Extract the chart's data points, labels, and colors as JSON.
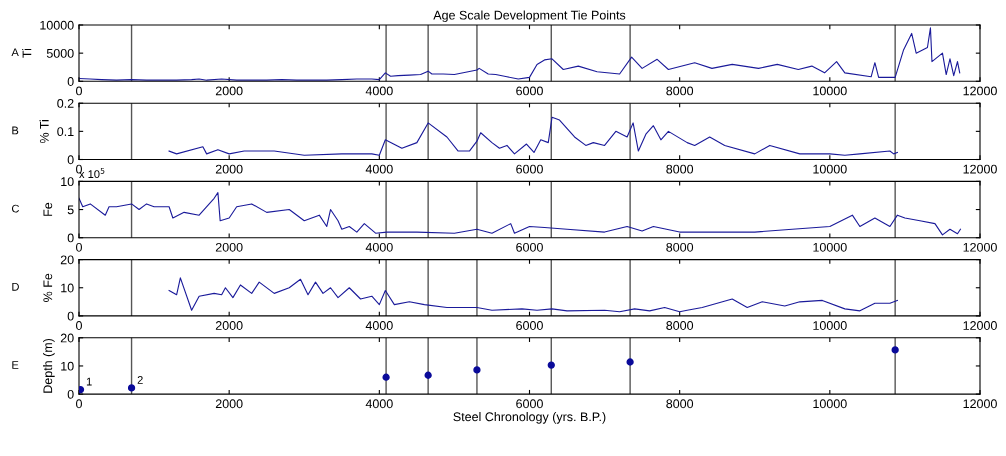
{
  "chart_data": [
    {
      "type": "line",
      "title": "Age Scale Development Tie Points",
      "ylabel": "Ti",
      "annotations": [
        "A"
      ],
      "ref_lines": [
        {
          "axis": "x",
          "value": 700
        },
        {
          "axis": "x",
          "value": 4090
        },
        {
          "axis": "x",
          "value": 4650
        },
        {
          "axis": "x",
          "value": 5300
        },
        {
          "axis": "x",
          "value": 6290
        },
        {
          "axis": "x",
          "value": 7340
        },
        {
          "axis": "x",
          "value": 10870
        }
      ],
      "grid": false,
      "xlim": [
        0,
        12000
      ],
      "xticks": [
        0,
        2000,
        4000,
        6000,
        8000,
        10000,
        12000
      ],
      "ylim": [
        0,
        10000
      ],
      "yticks": [
        0,
        5000,
        10000
      ],
      "series": [
        {
          "color": "#1a1a9a",
          "x": [
            0,
            150,
            300,
            500,
            700,
            900,
            1100,
            1300,
            1500,
            1600,
            1700,
            1900,
            2100,
            2300,
            2500,
            2700,
            2900,
            3100,
            3300,
            3500,
            3700,
            3900,
            4000,
            4080,
            4150,
            4250,
            4400,
            4550,
            4650,
            4700,
            4850,
            5000,
            5150,
            5300,
            5330,
            5450,
            5550,
            5700,
            5850,
            6000,
            6100,
            6200,
            6300,
            6450,
            6650,
            6900,
            7200,
            7360,
            7500,
            7700,
            7850,
            8200,
            8430,
            8700,
            9050,
            9300,
            9580,
            9760,
            9930,
            10090,
            10200,
            10550,
            10600,
            10650,
            10870,
            10980,
            11090,
            11150,
            11300,
            11340,
            11360,
            11500,
            11550,
            11600,
            11650,
            11700,
            11730
          ],
          "values": [
            500,
            400,
            300,
            200,
            300,
            200,
            200,
            200,
            300,
            400,
            200,
            400,
            200,
            200,
            200,
            300,
            200,
            200,
            200,
            300,
            400,
            400,
            300,
            1500,
            900,
            1000,
            1100,
            1200,
            1800,
            1300,
            1300,
            1200,
            1600,
            2000,
            2300,
            1300,
            1200,
            800,
            400,
            700,
            3000,
            3800,
            4000,
            2100,
            2700,
            1700,
            1300,
            4300,
            2300,
            3900,
            2100,
            3300,
            2300,
            3000,
            2300,
            3000,
            2100,
            2700,
            1500,
            3500,
            1500,
            800,
            3300,
            700,
            700,
            5500,
            8500,
            5000,
            6000,
            9500,
            3500,
            5000,
            1200,
            4000,
            1000,
            3500,
            1500
          ]
        }
      ]
    },
    {
      "type": "line",
      "ylabel": "% Ti",
      "annotations": [
        "B"
      ],
      "ref_lines": [
        {
          "axis": "x",
          "value": 700
        },
        {
          "axis": "x",
          "value": 4090
        },
        {
          "axis": "x",
          "value": 4650
        },
        {
          "axis": "x",
          "value": 5300
        },
        {
          "axis": "x",
          "value": 6290
        },
        {
          "axis": "x",
          "value": 7340
        },
        {
          "axis": "x",
          "value": 10870
        }
      ],
      "grid": false,
      "xlim": [
        0,
        12000
      ],
      "xticks": [
        0,
        2000,
        4000,
        6000,
        8000,
        10000,
        12000
      ],
      "ylim": [
        0,
        0.2
      ],
      "yticks": [
        0,
        0.1,
        0.2
      ],
      "series": [
        {
          "color": "#1a1a9a",
          "x": [
            1200,
            1300,
            1650,
            1700,
            1850,
            2000,
            2200,
            2600,
            3000,
            3500,
            3900,
            4000,
            4080,
            4300,
            4500,
            4650,
            4900,
            5050,
            5200,
            5300,
            5350,
            5500,
            5600,
            5700,
            5800,
            5960,
            6060,
            6150,
            6250,
            6300,
            6400,
            6600,
            6750,
            6850,
            7000,
            7150,
            7300,
            7380,
            7450,
            7550,
            7650,
            7750,
            7850,
            8100,
            8200,
            8400,
            8600,
            9000,
            9200,
            9600,
            10000,
            10200,
            10400,
            10800,
            10850,
            10900
          ],
          "values": [
            0.03,
            0.02,
            0.045,
            0.02,
            0.035,
            0.02,
            0.03,
            0.03,
            0.015,
            0.02,
            0.02,
            0.015,
            0.07,
            0.04,
            0.06,
            0.13,
            0.08,
            0.03,
            0.03,
            0.065,
            0.095,
            0.06,
            0.04,
            0.05,
            0.02,
            0.055,
            0.025,
            0.07,
            0.06,
            0.15,
            0.14,
            0.08,
            0.05,
            0.06,
            0.05,
            0.1,
            0.08,
            0.13,
            0.03,
            0.09,
            0.12,
            0.07,
            0.1,
            0.06,
            0.05,
            0.08,
            0.05,
            0.02,
            0.05,
            0.02,
            0.02,
            0.015,
            0.02,
            0.03,
            0.02,
            0.025
          ]
        }
      ]
    },
    {
      "type": "line",
      "ylabel": "Fe",
      "annotations": [
        "C",
        "x 10$^{5}$"
      ],
      "ref_lines": [
        {
          "axis": "x",
          "value": 700
        },
        {
          "axis": "x",
          "value": 4090
        },
        {
          "axis": "x",
          "value": 4650
        },
        {
          "axis": "x",
          "value": 5300
        },
        {
          "axis": "x",
          "value": 6290
        },
        {
          "axis": "x",
          "value": 7340
        },
        {
          "axis": "x",
          "value": 10870
        }
      ],
      "grid": false,
      "xlim": [
        0,
        12000
      ],
      "xticks": [
        0,
        2000,
        4000,
        6000,
        8000,
        10000,
        12000
      ],
      "ylim": [
        0,
        10
      ],
      "yticks": [
        0,
        5,
        10
      ],
      "series": [
        {
          "color": "#1a1a9a",
          "x": [
            0,
            50,
            150,
            350,
            400,
            500,
            700,
            800,
            900,
            1000,
            1200,
            1250,
            1400,
            1600,
            1800,
            1850,
            1880,
            2000,
            2100,
            2300,
            2500,
            2800,
            3000,
            3200,
            3300,
            3350,
            3450,
            3500,
            3600,
            3700,
            3800,
            3950,
            4100,
            4500,
            5000,
            5300,
            5500,
            5750,
            5800,
            6000,
            6200,
            6500,
            7000,
            7300,
            7500,
            7650,
            8000,
            9000,
            9500,
            10000,
            10300,
            10400,
            10600,
            10800,
            10900,
            11000,
            11200,
            11400,
            11500,
            11600,
            11700,
            11740
          ],
          "values": [
            7,
            5.5,
            6,
            4,
            5.5,
            5.5,
            6,
            5,
            6,
            5.5,
            5.5,
            3.5,
            4.5,
            4,
            7,
            8,
            3,
            3.5,
            5.5,
            6,
            4.5,
            5,
            3,
            4,
            2,
            5,
            3,
            1.5,
            2,
            1,
            2.5,
            0.8,
            1,
            1,
            0.8,
            1.5,
            0.8,
            2.5,
            0.8,
            2,
            1.8,
            1.5,
            1,
            2,
            1.2,
            2,
            1,
            1,
            1.5,
            2,
            4,
            2,
            3.5,
            2,
            4,
            3.5,
            3,
            2.5,
            0.5,
            1.5,
            0.7,
            1.5
          ]
        }
      ]
    },
    {
      "type": "line",
      "ylabel": "% Fe",
      "annotations": [
        "D"
      ],
      "ref_lines": [
        {
          "axis": "x",
          "value": 700
        },
        {
          "axis": "x",
          "value": 4090
        },
        {
          "axis": "x",
          "value": 4650
        },
        {
          "axis": "x",
          "value": 5300
        },
        {
          "axis": "x",
          "value": 6290
        },
        {
          "axis": "x",
          "value": 7340
        },
        {
          "axis": "x",
          "value": 10870
        }
      ],
      "grid": false,
      "xlim": [
        0,
        12000
      ],
      "xticks": [
        0,
        2000,
        4000,
        6000,
        8000,
        10000,
        12000
      ],
      "ylim": [
        0,
        20
      ],
      "yticks": [
        0,
        10,
        20
      ],
      "series": [
        {
          "color": "#1a1a9a",
          "x": [
            1200,
            1300,
            1350,
            1500,
            1600,
            1800,
            1900,
            1950,
            2050,
            2150,
            2300,
            2400,
            2600,
            2800,
            2950,
            3050,
            3150,
            3250,
            3350,
            3450,
            3600,
            3750,
            3900,
            4000,
            4080,
            4200,
            4400,
            4600,
            4900,
            5300,
            5500,
            5900,
            6100,
            6300,
            6500,
            7000,
            7200,
            7400,
            7600,
            7800,
            8000,
            8100,
            8300,
            8700,
            8900,
            9100,
            9400,
            9600,
            9900,
            10200,
            10400,
            10600,
            10800,
            10900
          ],
          "values": [
            9,
            7.5,
            13.5,
            2,
            7,
            8,
            7.5,
            10,
            6.5,
            11,
            8,
            12,
            8,
            10,
            13,
            7.5,
            12,
            8,
            10,
            6.5,
            10,
            6,
            7,
            4,
            9,
            4,
            5,
            4,
            3,
            3,
            2,
            2.5,
            2,
            2.5,
            1.8,
            2,
            1.5,
            2.5,
            1.8,
            3,
            1.5,
            2,
            3,
            6,
            3,
            5,
            3.5,
            5,
            5.5,
            2.5,
            1.8,
            4.5,
            4.5,
            5.5
          ]
        }
      ]
    },
    {
      "type": "scatter",
      "xlabel": "Steel Chronology (yrs. B.P.)",
      "ylabel": "Depth (m)",
      "ref_lines": [
        {
          "axis": "x",
          "value": 700
        },
        {
          "axis": "x",
          "value": 4090
        },
        {
          "axis": "x",
          "value": 4650
        },
        {
          "axis": "x",
          "value": 5300
        },
        {
          "axis": "x",
          "value": 6290
        },
        {
          "axis": "x",
          "value": 7340
        },
        {
          "axis": "x",
          "value": 10870
        }
      ],
      "annotations": [
        "E",
        {
          "text": "1",
          "x": 20,
          "y": 1.6
        },
        {
          "text": "2",
          "x": 700,
          "y": 2.2
        }
      ],
      "grid": false,
      "marker": "circle",
      "xlim": [
        0,
        12000
      ],
      "xticks": [
        0,
        2000,
        4000,
        6000,
        8000,
        10000,
        12000
      ],
      "ylim": [
        0,
        20
      ],
      "yticks": [
        0,
        10,
        20
      ],
      "series": [
        {
          "color": "#0a0a9a",
          "x": [
            20,
            700,
            4090,
            4650,
            5300,
            6290,
            7340,
            10870
          ],
          "values": [
            1.6,
            2.2,
            6,
            6.7,
            8.6,
            10.3,
            11.4,
            15.7
          ]
        }
      ]
    }
  ]
}
